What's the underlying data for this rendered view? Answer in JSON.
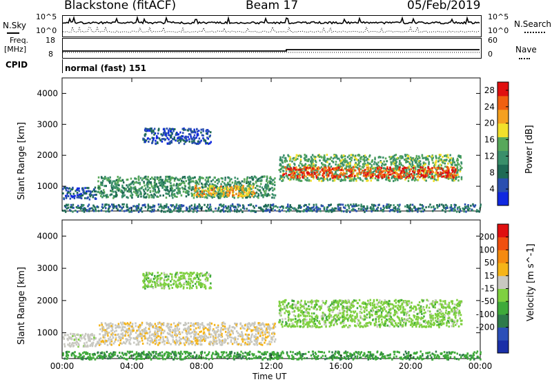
{
  "header": {
    "station": "Blackstone (fitACF)",
    "beam": "Beam 17",
    "date": "05/Feb/2019"
  },
  "top_panel": {
    "nsky_label": "N.Sky",
    "nsearch_label": "N.Search",
    "freq_label_1": "Freq.",
    "freq_label_2": "[MHz]",
    "nave_label": "Nave",
    "cpid_label": "CPID",
    "cpid_text": "normal (fast) 151",
    "noise_ticks_left": [
      "10^5",
      "10^0"
    ],
    "noise_ticks_right": [
      "10^5",
      "10^0"
    ],
    "freq_ticks": [
      "18",
      "8"
    ],
    "nave_ticks": [
      "60",
      "0"
    ]
  },
  "chart_data": [
    {
      "type": "heatmap",
      "ylabel": "Slant Range [km]",
      "xlabel": "",
      "x_ticks": [
        "00:00",
        "04:00",
        "08:00",
        "12:00",
        "16:00",
        "20:00",
        "00:00"
      ],
      "y_ticks": [
        "1000",
        "2000",
        "3000",
        "4000"
      ],
      "ylim": [
        200,
        4500
      ],
      "xlim_hours": [
        0,
        24
      ],
      "colorbar": {
        "label": "Power [dB]",
        "ticks": [
          "4",
          "8",
          "12",
          "16",
          "20",
          "24",
          "28"
        ],
        "range": [
          0,
          30
        ],
        "colors": [
          "#1028e0",
          "#2a4fb0",
          "#1f6a55",
          "#3a8f6a",
          "#58a85a",
          "#f2e02a",
          "#f5a020",
          "#f06010",
          "#e01010"
        ]
      },
      "regions": [
        {
          "t": [
            0.0,
            2.0
          ],
          "r": [
            600,
            1000
          ],
          "dB": 6
        },
        {
          "t": [
            2.0,
            12.2
          ],
          "r": [
            650,
            1350
          ],
          "dB": 12
        },
        {
          "t": [
            7.5,
            11.0
          ],
          "r": [
            700,
            1050
          ],
          "dB": 20
        },
        {
          "t": [
            12.4,
            22.9
          ],
          "r": [
            1200,
            2050
          ],
          "dB": 14
        },
        {
          "t": [
            12.6,
            22.6
          ],
          "r": [
            1300,
            1650
          ],
          "dB": 26
        },
        {
          "t": [
            4.6,
            8.5
          ],
          "r": [
            2400,
            2900
          ],
          "dB": 5
        },
        {
          "t": [
            0.0,
            24.0
          ],
          "r": [
            200,
            450
          ],
          "dB": 8
        }
      ]
    },
    {
      "type": "heatmap",
      "ylabel": "Slant Range [km]",
      "xlabel": "Time UT",
      "x_ticks": [
        "00:00",
        "04:00",
        "08:00",
        "12:00",
        "16:00",
        "20:00",
        "00:00"
      ],
      "y_ticks": [
        "1000",
        "2000",
        "3000",
        "4000"
      ],
      "ylim": [
        200,
        4500
      ],
      "xlim_hours": [
        0,
        24
      ],
      "colorbar": {
        "label": "Velocity [m s^-1]",
        "ticks": [
          "200",
          "100",
          "50",
          "15",
          "-15",
          "-50",
          "-100",
          "-200"
        ],
        "colors": [
          "#1a2fa8",
          "#2b4fb8",
          "#2e7a4a",
          "#3faa3a",
          "#7fd040",
          "#c8c8c0",
          "#f5b418",
          "#f58a10",
          "#f05010",
          "#e01010"
        ]
      },
      "regions": [
        {
          "t": [
            0.0,
            2.0
          ],
          "r": [
            600,
            1000
          ],
          "v": -30
        },
        {
          "t": [
            2.0,
            12.2
          ],
          "r": [
            650,
            1350
          ],
          "v": -40
        },
        {
          "t": [
            12.4,
            22.9
          ],
          "r": [
            1200,
            2050
          ],
          "v": 0
        },
        {
          "t": [
            4.6,
            8.5
          ],
          "r": [
            2400,
            2900
          ],
          "v": 0
        },
        {
          "t": [
            0.0,
            24.0
          ],
          "r": [
            200,
            450
          ],
          "v": 40
        }
      ]
    }
  ]
}
